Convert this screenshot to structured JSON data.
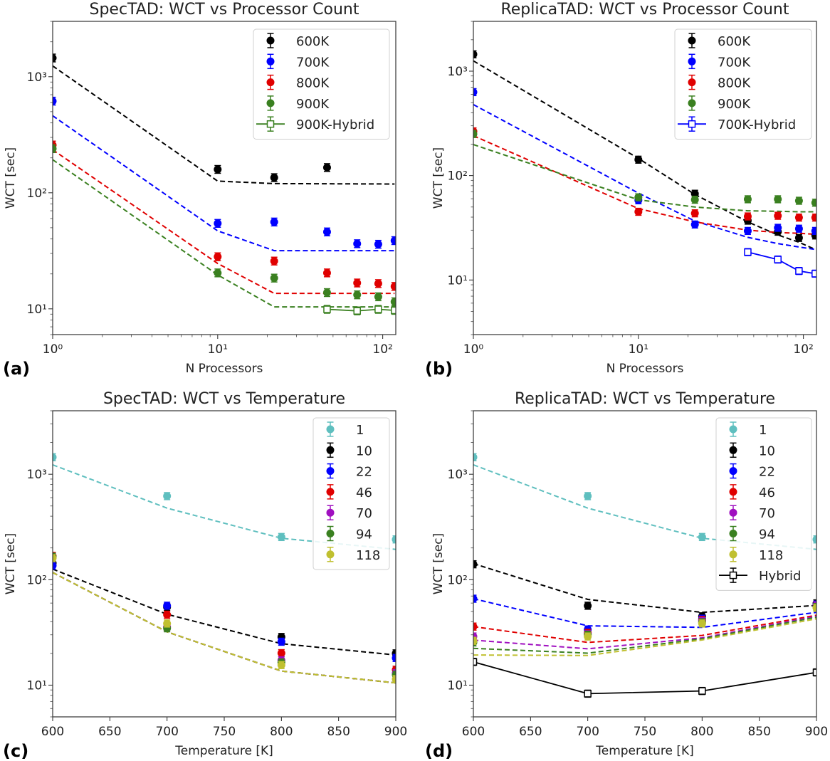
{
  "chart_data": [
    {
      "panel_label": "(a)",
      "type": "scatter",
      "title": "SpecTAD: WCT vs Processor Count",
      "xlabel": "N Processors",
      "ylabel": "WCT [sec]",
      "xscale": "log",
      "yscale": "log",
      "xlim": [
        1,
        120
      ],
      "ylim": [
        6,
        3000
      ],
      "xticks": [
        1,
        10,
        100
      ],
      "xtick_labels": [
        "10⁰",
        "10¹",
        "10²"
      ],
      "yticks": [
        10,
        100,
        1000
      ],
      "ytick_labels": [
        "10¹",
        "10²",
        "10³"
      ],
      "legend": "top-right",
      "series": [
        {
          "name": "600K",
          "color": "#000000",
          "marker": "circle",
          "x": [
            1,
            10,
            22,
            46
          ],
          "y": [
            1450,
            159,
            135,
            165
          ],
          "fit_x": [
            1,
            10,
            22,
            118
          ],
          "fit_y": [
            1240,
            126,
            120,
            119
          ]
        },
        {
          "name": "700K",
          "color": "#0000ff",
          "marker": "circle",
          "x": [
            1,
            10,
            22,
            46,
            70,
            94,
            118
          ],
          "y": [
            616,
            54.5,
            56,
            46,
            36.4,
            36,
            38.7
          ],
          "fit_x": [
            1,
            10,
            22,
            118
          ],
          "fit_y": [
            461,
            47,
            31.7,
            31.7
          ]
        },
        {
          "name": "800K",
          "color": "#e00000",
          "marker": "circle",
          "x": [
            1,
            10,
            22,
            46,
            70,
            94,
            118
          ],
          "y": [
            258,
            28.1,
            25.8,
            20.4,
            16.7,
            16.5,
            15.6
          ],
          "fit_x": [
            1,
            10,
            22,
            118
          ],
          "fit_y": [
            235,
            24.6,
            13.6,
            13.6
          ]
        },
        {
          "name": "900K",
          "color": "#3a8020",
          "marker": "circle",
          "x": [
            1,
            10,
            22,
            46,
            70,
            94,
            118
          ],
          "y": [
            240,
            20.4,
            18.4,
            13.8,
            13.2,
            12.7,
            11.5
          ],
          "fit_x": [
            1,
            10,
            22,
            118
          ],
          "fit_y": [
            193,
            19.6,
            10.4,
            10.4
          ]
        },
        {
          "name": "900K-Hybrid",
          "color": "#3a8020",
          "marker": "square-open",
          "line": "solid",
          "x": [
            46,
            70,
            94,
            118
          ],
          "y": [
            9.9,
            9.6,
            9.9,
            9.7
          ]
        }
      ]
    },
    {
      "panel_label": "(b)",
      "type": "scatter",
      "title": "ReplicaTAD: WCT vs Processor Count",
      "xlabel": "N Processors",
      "ylabel": "WCT [sec]",
      "xscale": "log",
      "yscale": "log",
      "xlim": [
        1,
        120
      ],
      "ylim": [
        3,
        3000
      ],
      "xticks": [
        1,
        10,
        100
      ],
      "xtick_labels": [
        "10⁰",
        "10¹",
        "10²"
      ],
      "yticks": [
        10,
        100,
        1000
      ],
      "ytick_labels": [
        "10¹",
        "10²",
        "10³"
      ],
      "legend": "top-right",
      "series": [
        {
          "name": "600K",
          "color": "#000000",
          "marker": "circle",
          "x": [
            1,
            10,
            22,
            46,
            70,
            94,
            118
          ],
          "y": [
            1450,
            142,
            67,
            37,
            29,
            25.3,
            26.7
          ],
          "fit_x": [
            1,
            10,
            22,
            46,
            70,
            94,
            118
          ],
          "fit_y": [
            1255,
            146,
            66,
            36,
            27,
            23,
            19.6
          ]
        },
        {
          "name": "700K",
          "color": "#0000ff",
          "marker": "circle",
          "x": [
            1,
            10,
            22,
            46,
            70,
            94,
            118
          ],
          "y": [
            630,
            58,
            34,
            29.5,
            31.6,
            31,
            29.5
          ],
          "fit_x": [
            1,
            10,
            22,
            46,
            70,
            94,
            118
          ],
          "fit_y": [
            479,
            68,
            36.7,
            25.6,
            22.3,
            20.7,
            19.6
          ]
        },
        {
          "name": "800K",
          "color": "#e00000",
          "marker": "circle",
          "x": [
            1,
            10,
            22,
            46,
            70,
            94,
            118
          ],
          "y": [
            265,
            45,
            43.5,
            40.6,
            41.2,
            39.6,
            39.6
          ],
          "fit_x": [
            1,
            10,
            22,
            46,
            70,
            94,
            118
          ],
          "fit_y": [
            241,
            48.3,
            36,
            30,
            28.5,
            28,
            27.4
          ]
        },
        {
          "name": "900K",
          "color": "#3a8020",
          "marker": "circle",
          "x": [
            1,
            10,
            22,
            46,
            70,
            94,
            118
          ],
          "y": [
            250,
            61.9,
            58.7,
            59.3,
            59.3,
            57.4,
            55
          ],
          "fit_x": [
            1,
            10,
            22,
            46,
            70,
            94,
            118
          ],
          "fit_y": [
            198,
            58.7,
            50,
            46,
            45.5,
            45,
            45
          ]
        },
        {
          "name": "700K-Hybrid",
          "color": "#0000ff",
          "marker": "square-open",
          "line": "solid",
          "x": [
            46,
            70,
            94,
            118
          ],
          "y": [
            18.5,
            15.7,
            12.2,
            11.5
          ]
        }
      ]
    },
    {
      "panel_label": "(c)",
      "type": "scatter",
      "title": "SpecTAD: WCT vs Temperature",
      "xlabel": "Temperature [K]",
      "ylabel": "WCT [sec]",
      "xscale": "linear",
      "yscale": "log",
      "xlim": [
        600,
        900
      ],
      "ylim": [
        5,
        4000
      ],
      "xticks": [
        600,
        650,
        700,
        750,
        800,
        850,
        900
      ],
      "xtick_labels": [
        "600",
        "650",
        "700",
        "750",
        "800",
        "850",
        "900"
      ],
      "yticks": [
        10,
        100,
        1000
      ],
      "ytick_labels": [
        "10¹",
        "10²",
        "10³"
      ],
      "legend": "top-right",
      "series": [
        {
          "name": "1",
          "color": "#5fbfbf",
          "marker": "circle",
          "x": [
            600,
            700,
            800,
            900
          ],
          "y": [
            1450,
            620,
            254,
            241
          ],
          "fit_x": [
            600,
            700,
            800,
            900
          ],
          "fit_y": [
            1230,
            477,
            247,
            194
          ]
        },
        {
          "name": "10",
          "color": "#000000",
          "marker": "circle",
          "x": [
            600,
            700,
            800,
            900
          ],
          "y": [
            144,
            55,
            28.6,
            20
          ],
          "fit_x": [
            600,
            700,
            800,
            900
          ],
          "fit_y": [
            126,
            47,
            24.7,
            19.3
          ]
        },
        {
          "name": "22",
          "color": "#0000ff",
          "marker": "circle",
          "x": [
            600,
            700,
            800,
            900
          ],
          "y": [
            136,
            56.6,
            25.8,
            18.1
          ],
          "fit_x": [
            600,
            700,
            800,
            900
          ],
          "fit_y": [
            117,
            32,
            13.6,
            10.5
          ]
        },
        {
          "name": "46",
          "color": "#e00000",
          "marker": "circle",
          "x": [
            600,
            700,
            800,
            900
          ],
          "y": [
            168,
            46.5,
            20.1,
            14
          ],
          "fit_x": [
            600,
            700,
            800,
            900
          ],
          "fit_y": [
            117,
            32,
            13.6,
            10.5
          ]
        },
        {
          "name": "70",
          "color": "#a010c0",
          "marker": "circle",
          "x": [
            600,
            700,
            800,
            900
          ],
          "y": [
            164,
            35.5,
            17.2,
            13
          ],
          "fit_x": [
            600,
            700,
            800,
            900
          ],
          "fit_y": [
            117,
            32,
            13.6,
            10.5
          ]
        },
        {
          "name": "94",
          "color": "#3a8020",
          "marker": "circle",
          "x": [
            600,
            700,
            800,
            900
          ],
          "y": [
            165,
            34.6,
            16.4,
            12.5
          ],
          "fit_x": [
            600,
            700,
            800,
            900
          ],
          "fit_y": [
            117,
            32,
            13.6,
            10.5
          ]
        },
        {
          "name": "118",
          "color": "#c0c030",
          "marker": "circle",
          "x": [
            600,
            700,
            800,
            900
          ],
          "y": [
            160,
            38.4,
            15.5,
            11.4
          ],
          "fit_x": [
            600,
            700,
            800,
            900
          ],
          "fit_y": [
            117,
            32,
            13.6,
            10.5
          ]
        }
      ]
    },
    {
      "panel_label": "(d)",
      "type": "scatter",
      "title": "ReplicaTAD: WCT vs Temperature",
      "xlabel": "Temperature [K]",
      "ylabel": "WCT [sec]",
      "xscale": "linear",
      "yscale": "log",
      "xlim": [
        600,
        900
      ],
      "ylim": [
        5,
        4000
      ],
      "xticks": [
        600,
        650,
        700,
        750,
        800,
        850,
        900
      ],
      "xtick_labels": [
        "600",
        "650",
        "700",
        "750",
        "800",
        "850",
        "900"
      ],
      "yticks": [
        10,
        100,
        1000
      ],
      "ytick_labels": [
        "10¹",
        "10²",
        "10³"
      ],
      "legend": "top-right",
      "series": [
        {
          "name": "1",
          "color": "#5fbfbf",
          "marker": "circle",
          "x": [
            600,
            700,
            800,
            900
          ],
          "y": [
            1450,
            620,
            254,
            241
          ],
          "fit_x": [
            600,
            700,
            800,
            900
          ],
          "fit_y": [
            1230,
            477,
            247,
            194
          ]
        },
        {
          "name": "10",
          "color": "#000000",
          "marker": "circle",
          "x": [
            600,
            700,
            800,
            900
          ],
          "y": [
            140,
            56.6,
            44.9,
            59.6
          ],
          "fit_x": [
            600,
            700,
            800,
            900
          ],
          "fit_y": [
            142,
            65,
            49,
            57
          ]
        },
        {
          "name": "22",
          "color": "#0000ff",
          "marker": "circle",
          "x": [
            600,
            700,
            800,
            900
          ],
          "y": [
            66,
            33.7,
            42.6,
            58
          ],
          "fit_x": [
            600,
            700,
            800,
            900
          ],
          "fit_y": [
            66,
            36.5,
            35.3,
            49
          ]
        },
        {
          "name": "46",
          "color": "#e00000",
          "marker": "circle",
          "x": [
            600,
            700,
            800,
            900
          ],
          "y": [
            35.9,
            31.3,
            41.5,
            56.6
          ],
          "fit_x": [
            600,
            700,
            800,
            900
          ],
          "fit_y": [
            35.9,
            25.4,
            29.6,
            46
          ]
        },
        {
          "name": "70",
          "color": "#a010c0",
          "marker": "circle",
          "x": [
            600,
            700,
            800,
            900
          ],
          "y": [
            28.9,
            30.4,
            40.5,
            57
          ],
          "fit_x": [
            600,
            700,
            800,
            900
          ],
          "fit_y": [
            26.7,
            22.1,
            28.1,
            45
          ]
        },
        {
          "name": "94",
          "color": "#3a8020",
          "marker": "circle",
          "x": [
            600,
            700,
            800,
            900
          ],
          "y": [
            25.4,
            30,
            39.4,
            55
          ],
          "fit_x": [
            600,
            700,
            800,
            900
          ],
          "fit_y": [
            22.3,
            20.1,
            27.5,
            44
          ]
        },
        {
          "name": "118",
          "color": "#c0c030",
          "marker": "circle",
          "x": [
            600,
            700,
            800,
            900
          ],
          "y": [
            26.3,
            28.9,
            38.4,
            54
          ],
          "fit_x": [
            600,
            700,
            800,
            900
          ],
          "fit_y": [
            19.3,
            19.1,
            26.8,
            42.5
          ]
        },
        {
          "name": "Hybrid",
          "color": "#000000",
          "marker": "square-open",
          "line": "solid",
          "x": [
            600,
            700,
            800,
            900
          ],
          "y": [
            16.6,
            8.3,
            8.8,
            13.2
          ]
        }
      ]
    }
  ]
}
